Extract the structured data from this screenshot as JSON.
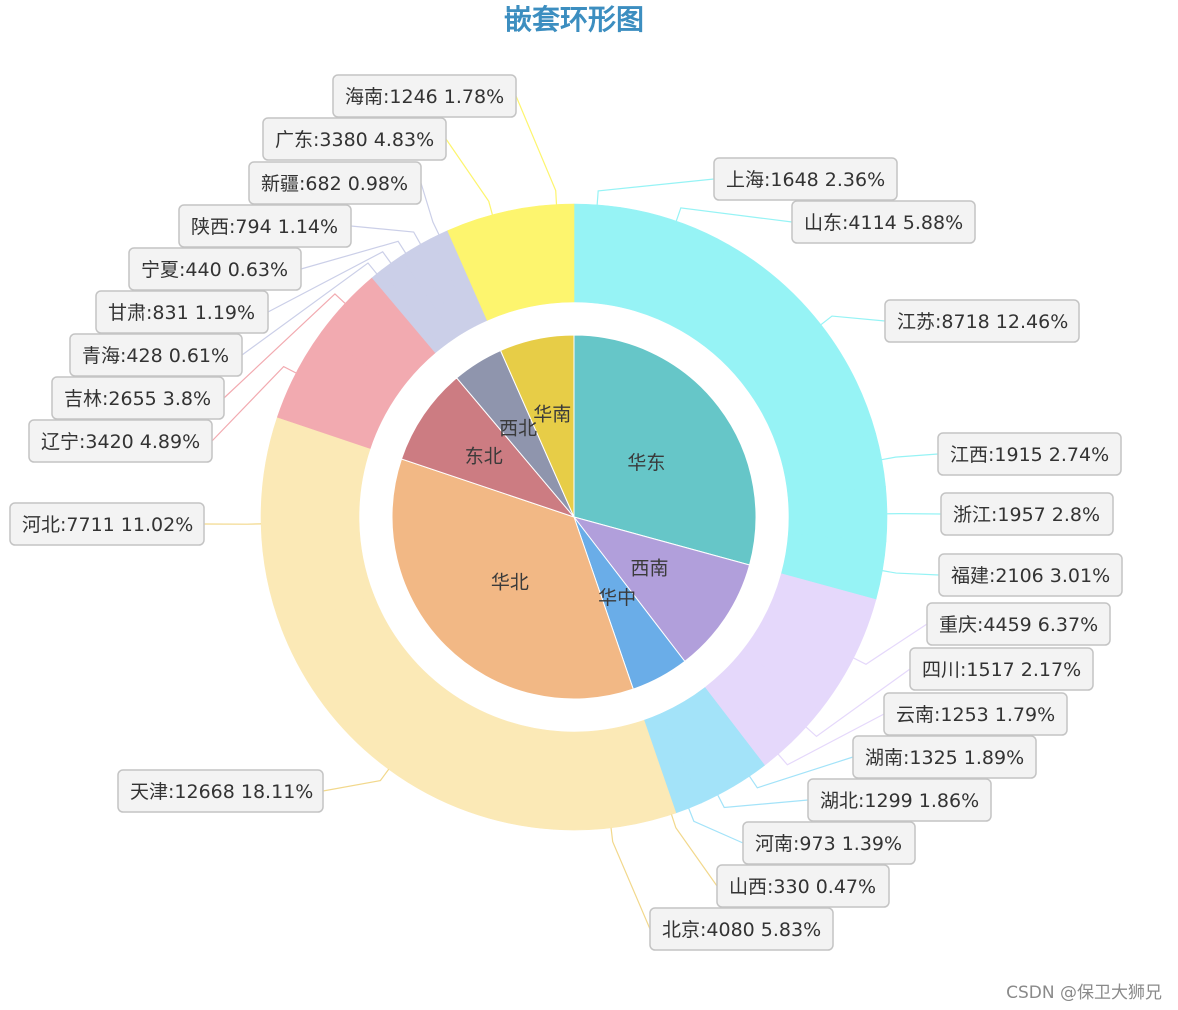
{
  "watermark": "CSDN @保卫大狮兄",
  "chart_data": {
    "type": "pie",
    "subtype": "nested-donut",
    "title": "嵌套环形图",
    "inner": {
      "type": "pie",
      "categories": [
        "华东",
        "西南",
        "华中",
        "华北",
        "东北",
        "西北",
        "华南"
      ],
      "colors": [
        "#66c6c8",
        "#b19fdb",
        "#6aade8",
        "#f2b885",
        "#cc7c82",
        "#8f95ad",
        "#e7cd47"
      ]
    },
    "outer": {
      "type": "donut",
      "slices": [
        {
          "name": "上海",
          "value": 1648,
          "percent": "2.36%",
          "group": "华东",
          "color": "#96f3f5"
        },
        {
          "name": "山东",
          "value": 4114,
          "percent": "5.88%",
          "group": "华东",
          "color": "#96f3f5"
        },
        {
          "name": "江苏",
          "value": 8718,
          "percent": "12.46%",
          "group": "华东",
          "color": "#96f3f5"
        },
        {
          "name": "江西",
          "value": 1915,
          "percent": "2.74%",
          "group": "华东",
          "color": "#96f3f5"
        },
        {
          "name": "浙江",
          "value": 1957,
          "percent": "2.8%",
          "group": "华东",
          "color": "#96f3f5"
        },
        {
          "name": "福建",
          "value": 2106,
          "percent": "3.01%",
          "group": "华东",
          "color": "#96f3f5"
        },
        {
          "name": "重庆",
          "value": 4459,
          "percent": "6.37%",
          "group": "西南",
          "color": "#e5d8fb"
        },
        {
          "name": "四川",
          "value": 1517,
          "percent": "2.17%",
          "group": "西南",
          "color": "#e5d8fb"
        },
        {
          "name": "云南",
          "value": 1253,
          "percent": "1.79%",
          "group": "西南",
          "color": "#e5d8fb"
        },
        {
          "name": "湖南",
          "value": 1325,
          "percent": "1.89%",
          "group": "华中",
          "color": "#a3e3f9"
        },
        {
          "name": "湖北",
          "value": 1299,
          "percent": "1.86%",
          "group": "华中",
          "color": "#a3e3f9"
        },
        {
          "name": "河南",
          "value": 973,
          "percent": "1.39%",
          "group": "华中",
          "color": "#a3e3f9"
        },
        {
          "name": "山西",
          "value": 330,
          "percent": "0.47%",
          "group": "华北",
          "color": "#fbe9b6"
        },
        {
          "name": "北京",
          "value": 4080,
          "percent": "5.83%",
          "group": "华北",
          "color": "#fbe9b6"
        },
        {
          "name": "天津",
          "value": 12668,
          "percent": "18.11%",
          "group": "华北",
          "color": "#fbe9b6"
        },
        {
          "name": "河北",
          "value": 7711,
          "percent": "11.02%",
          "group": "华北",
          "color": "#fbe9b6"
        },
        {
          "name": "辽宁",
          "value": 3420,
          "percent": "4.89%",
          "group": "东北",
          "color": "#f2aab0"
        },
        {
          "name": "吉林",
          "value": 2655,
          "percent": "3.8%",
          "group": "东北",
          "color": "#f2aab0"
        },
        {
          "name": "青海",
          "value": 428,
          "percent": "0.61%",
          "group": "西北",
          "color": "#cbcfe8"
        },
        {
          "name": "甘肃",
          "value": 831,
          "percent": "1.19%",
          "group": "西北",
          "color": "#cbcfe8"
        },
        {
          "name": "宁夏",
          "value": 440,
          "percent": "0.63%",
          "group": "西北",
          "color": "#cbcfe8"
        },
        {
          "name": "陕西",
          "value": 794,
          "percent": "1.14%",
          "group": "西北",
          "color": "#cbcfe8"
        },
        {
          "name": "新疆",
          "value": 682,
          "percent": "0.98%",
          "group": "西北",
          "color": "#cbcfe8"
        },
        {
          "name": "广东",
          "value": 3380,
          "percent": "4.83%",
          "group": "华南",
          "color": "#fdf56e"
        },
        {
          "name": "海南",
          "value": 1246,
          "percent": "1.78%",
          "group": "华南",
          "color": "#fdf56e"
        }
      ]
    },
    "legend": "none"
  }
}
